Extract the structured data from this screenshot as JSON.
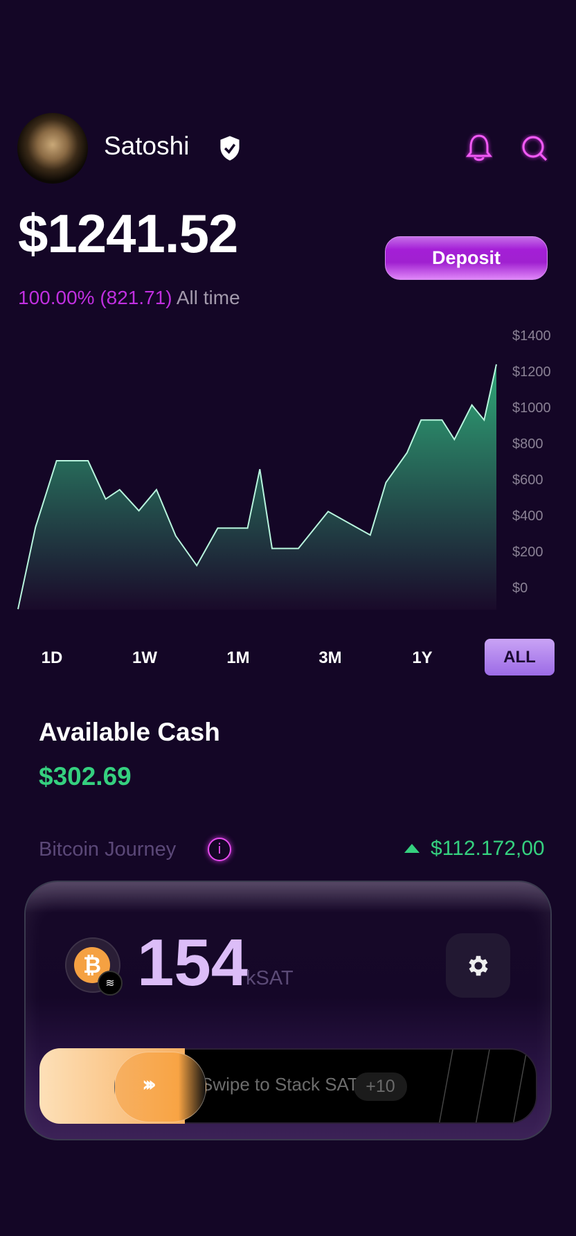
{
  "profile": {
    "name": "Satoshi",
    "verified": true
  },
  "header_icons": [
    "bell-icon",
    "search-icon"
  ],
  "portfolio": {
    "balance": "$1241.52",
    "change_pct": "100.00%",
    "change_abs": "(821.71)",
    "period_label": "All time",
    "deposit_label": "Deposit"
  },
  "chart_data": {
    "type": "area",
    "title": "",
    "xlabel": "",
    "ylabel": "",
    "ylim": [
      0,
      1400
    ],
    "yticks": [
      "$1400",
      "$1200",
      "$1000",
      "$800",
      "$600",
      "$400",
      "$200",
      "$0"
    ],
    "ytick_values": [
      1400,
      1200,
      1000,
      800,
      600,
      400,
      200,
      0
    ],
    "grid": false,
    "color": "#35c08a",
    "values": [
      -120,
      335,
      704,
      704,
      491,
      543,
      426,
      543,
      287,
      122,
      330,
      330,
      657,
      217,
      217,
      422,
      291,
      583,
      748,
      930,
      930,
      822,
      1013,
      930,
      1239
    ],
    "x": [
      0,
      1,
      2.2,
      4,
      5,
      5.8,
      6.9,
      7.9,
      9,
      10.2,
      11.4,
      13.1,
      13.8,
      14.5,
      16,
      17.7,
      20.1,
      21,
      22.2,
      23,
      24.2,
      24.9,
      25.9,
      26.6,
      27.3
    ]
  },
  "timeframes": [
    "1D",
    "1W",
    "1M",
    "3M",
    "1Y",
    "ALL"
  ],
  "selected_timeframe": "ALL",
  "cash": {
    "title": "Available Cash",
    "value": "$302.69"
  },
  "journey": {
    "title": "Bitcoin Journey",
    "btc_price": "$112.172,00",
    "trend": "up"
  },
  "stack": {
    "amount": "154",
    "unit": "kSAT",
    "swipe_label": "Swipe to Stack SATs",
    "bonus": "+10"
  },
  "colors": {
    "background": "#140626",
    "accent": "#a41fd6",
    "positive": "#35d07f",
    "sats": "#dcbdf8",
    "bitcoin": "#f5a142"
  }
}
